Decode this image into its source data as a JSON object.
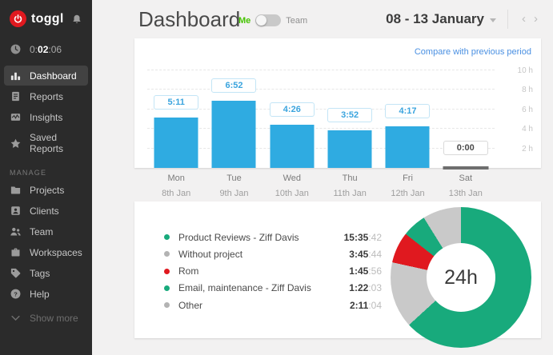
{
  "app": {
    "logo_text": "toggl",
    "colors": {
      "bar_blue": "#2fabe1",
      "link_blue": "#4a90e2",
      "green": "#18aa7c",
      "red": "#e0191f",
      "gray_slice": "#c9c9c9",
      "me_green": "#45c300"
    }
  },
  "sidebar": {
    "timer": {
      "pre": "0:",
      "mid": "02",
      "post": ":06"
    },
    "items": [
      {
        "label": "Dashboard",
        "active": true
      },
      {
        "label": "Reports",
        "active": false
      },
      {
        "label": "Insights",
        "active": false
      },
      {
        "label": "Saved Reports",
        "active": false
      }
    ],
    "manage_label": "MANAGE",
    "manage_items": [
      {
        "label": "Projects"
      },
      {
        "label": "Clients"
      },
      {
        "label": "Team"
      },
      {
        "label": "Workspaces"
      },
      {
        "label": "Tags"
      },
      {
        "label": "Help"
      }
    ],
    "show_more_label": "Show more"
  },
  "header": {
    "title": "Dashboard",
    "scope_toggle": {
      "me_label": "Me",
      "team_label": "Team",
      "selected": "Me"
    },
    "date_range_label": "08 - 13 January"
  },
  "top_card": {
    "compare_link_label": "Compare with previous period"
  },
  "chart_data": [
    {
      "type": "bar",
      "title": "Tracked time per day, 08 - 13 January",
      "categories": [
        {
          "day": "Mon",
          "date": "8th Jan"
        },
        {
          "day": "Tue",
          "date": "9th Jan"
        },
        {
          "day": "Wed",
          "date": "10th Jan"
        },
        {
          "day": "Thu",
          "date": "11th Jan"
        },
        {
          "day": "Fri",
          "date": "12th Jan"
        },
        {
          "day": "Sat",
          "date": "13th Jan"
        }
      ],
      "bar_labels": [
        "5:11",
        "6:52",
        "4:26",
        "3:52",
        "4:17",
        "0:00"
      ],
      "values_hours": [
        5.18,
        6.87,
        4.43,
        3.87,
        4.28,
        0
      ],
      "ylim": [
        0,
        10
      ],
      "ytick_labels_top_to_bottom": [
        "10 h",
        "8 h",
        "6 h",
        "4 h",
        "2 h"
      ],
      "grid": true,
      "bar_color": "#2fabe1",
      "current_day_index": 5
    },
    {
      "type": "pie",
      "center_label": "24h",
      "legend_position": "left",
      "series": [
        {
          "name": "Product Reviews - Ziff Davis",
          "duration_main": "15:35",
          "duration_sec": ":42",
          "hours": 15.595,
          "color": "#18aa7c",
          "dot_color": "#18aa7c"
        },
        {
          "name": "Without project",
          "duration_main": "3:45",
          "duration_sec": ":44",
          "hours": 3.762,
          "color": "#c9c9c9",
          "dot_color": "#b3b3b3"
        },
        {
          "name": "Rom",
          "duration_main": "1:45",
          "duration_sec": ":56",
          "hours": 1.766,
          "color": "#e0191f",
          "dot_color": "#e0191f"
        },
        {
          "name": "Email, maintenance - Ziff Davis",
          "duration_main": "1:22",
          "duration_sec": ":03",
          "hours": 1.368,
          "color": "#18aa7c",
          "dot_color": "#18aa7c"
        },
        {
          "name": "Other",
          "duration_main": "2:11",
          "duration_sec": ":04",
          "hours": 2.184,
          "color": "#c9c9c9",
          "dot_color": "#b3b3b3"
        }
      ]
    }
  ]
}
